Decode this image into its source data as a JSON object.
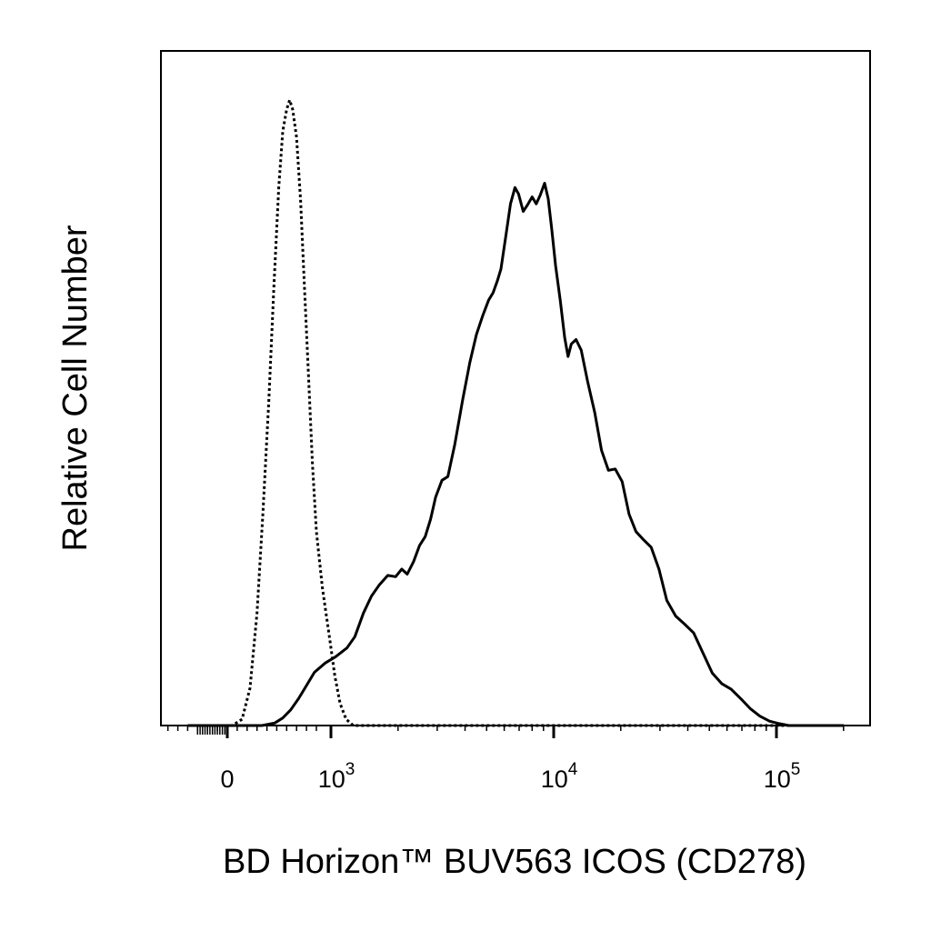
{
  "chart_data": {
    "type": "line",
    "title": "",
    "xlabel": "BD Horizon™ BUV563 ICOS (CD278)",
    "ylabel": "Relative Cell Number",
    "x_scale": "biexponential",
    "xlim": [
      -400,
      200000
    ],
    "ylim": [
      0,
      1
    ],
    "grid": false,
    "legend": "none",
    "tick_labels": [
      {
        "base": "0",
        "exp": "",
        "value": 0
      },
      {
        "base": "10",
        "exp": "3",
        "value": 1000
      },
      {
        "base": "10",
        "exp": "4",
        "value": 10000
      },
      {
        "base": "10",
        "exp": "5",
        "value": 100000
      }
    ],
    "series": [
      {
        "style": "dotted",
        "color": "#000000",
        "points": [
          [
            -80,
            0.0
          ],
          [
            50,
            0.0
          ],
          [
            150,
            0.01
          ],
          [
            230,
            0.06
          ],
          [
            300,
            0.18
          ],
          [
            360,
            0.34
          ],
          [
            420,
            0.52
          ],
          [
            470,
            0.7
          ],
          [
            520,
            0.86
          ],
          [
            560,
            0.95
          ],
          [
            600,
            0.985
          ],
          [
            630,
            1.0
          ],
          [
            660,
            0.985
          ],
          [
            700,
            0.94
          ],
          [
            740,
            0.84
          ],
          [
            780,
            0.7
          ],
          [
            820,
            0.56
          ],
          [
            860,
            0.42
          ],
          [
            900,
            0.31
          ],
          [
            940,
            0.22
          ],
          [
            990,
            0.14
          ],
          [
            1040,
            0.08
          ],
          [
            1100,
            0.035
          ],
          [
            1170,
            0.01
          ],
          [
            1260,
            0.0
          ],
          [
            1500,
            0.0
          ],
          [
            3000,
            0.0
          ],
          [
            10000,
            0.0
          ],
          [
            100000,
            0.0
          ],
          [
            200000,
            0.0
          ]
        ]
      },
      {
        "style": "solid",
        "color": "#000000",
        "points": [
          [
            -400,
            0.0
          ],
          [
            350,
            0.0
          ],
          [
            480,
            0.004
          ],
          [
            560,
            0.012
          ],
          [
            640,
            0.025
          ],
          [
            720,
            0.043
          ],
          [
            800,
            0.064
          ],
          [
            880,
            0.085
          ],
          [
            960,
            0.1
          ],
          [
            1050,
            0.11
          ],
          [
            1180,
            0.124
          ],
          [
            1280,
            0.142
          ],
          [
            1400,
            0.18
          ],
          [
            1520,
            0.207
          ],
          [
            1650,
            0.225
          ],
          [
            1800,
            0.24
          ],
          [
            1950,
            0.238
          ],
          [
            2080,
            0.25
          ],
          [
            2200,
            0.242
          ],
          [
            2350,
            0.262
          ],
          [
            2500,
            0.288
          ],
          [
            2650,
            0.302
          ],
          [
            2800,
            0.33
          ],
          [
            2950,
            0.365
          ],
          [
            3150,
            0.392
          ],
          [
            3350,
            0.398
          ],
          [
            3600,
            0.45
          ],
          [
            3900,
            0.52
          ],
          [
            4200,
            0.58
          ],
          [
            4500,
            0.625
          ],
          [
            4800,
            0.655
          ],
          [
            5100,
            0.68
          ],
          [
            5350,
            0.692
          ],
          [
            5600,
            0.712
          ],
          [
            5800,
            0.73
          ],
          [
            6100,
            0.783
          ],
          [
            6400,
            0.834
          ],
          [
            6700,
            0.86
          ],
          [
            6950,
            0.85
          ],
          [
            7300,
            0.822
          ],
          [
            7650,
            0.833
          ],
          [
            8000,
            0.845
          ],
          [
            8350,
            0.834
          ],
          [
            8700,
            0.848
          ],
          [
            9100,
            0.867
          ],
          [
            9450,
            0.842
          ],
          [
            9800,
            0.793
          ],
          [
            10200,
            0.735
          ],
          [
            10700,
            0.68
          ],
          [
            11200,
            0.62
          ],
          [
            11600,
            0.59
          ],
          [
            12000,
            0.61
          ],
          [
            12600,
            0.617
          ],
          [
            13300,
            0.6
          ],
          [
            14200,
            0.55
          ],
          [
            15300,
            0.5
          ],
          [
            16400,
            0.44
          ],
          [
            17600,
            0.408
          ],
          [
            18900,
            0.41
          ],
          [
            20300,
            0.39
          ],
          [
            21800,
            0.338
          ],
          [
            23400,
            0.31
          ],
          [
            25300,
            0.297
          ],
          [
            27400,
            0.285
          ],
          [
            29700,
            0.25
          ],
          [
            32200,
            0.2
          ],
          [
            35300,
            0.175
          ],
          [
            38700,
            0.162
          ],
          [
            42500,
            0.148
          ],
          [
            46800,
            0.116
          ],
          [
            51500,
            0.084
          ],
          [
            56800,
            0.067
          ],
          [
            62600,
            0.058
          ],
          [
            69100,
            0.043
          ],
          [
            76300,
            0.027
          ],
          [
            84300,
            0.015
          ],
          [
            93100,
            0.007
          ],
          [
            102800,
            0.003
          ],
          [
            113600,
            0.0
          ],
          [
            130000,
            0.0
          ],
          [
            200000,
            0.0
          ]
        ]
      }
    ]
  }
}
